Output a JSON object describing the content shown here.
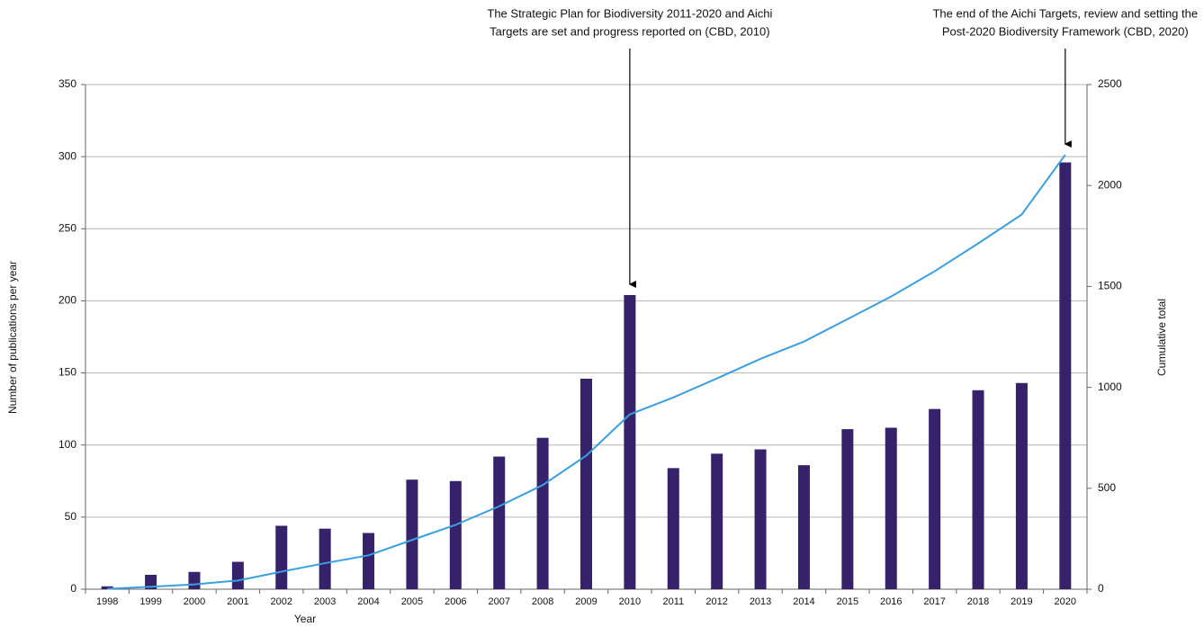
{
  "chart_data": {
    "type": "bar_line",
    "categories": [
      "1998",
      "1999",
      "2000",
      "2001",
      "2002",
      "2003",
      "2004",
      "2005",
      "2006",
      "2007",
      "2008",
      "2009",
      "2010",
      "2011",
      "2012",
      "2013",
      "2014",
      "2015",
      "2016",
      "2017",
      "2018",
      "2019",
      "2020"
    ],
    "series": [
      {
        "type": "bar",
        "color": "#35226a",
        "values": [
          2,
          10,
          12,
          19,
          44,
          42,
          39,
          76,
          75,
          92,
          105,
          146,
          204,
          84,
          94,
          97,
          86,
          111,
          112,
          125,
          138,
          143,
          296
        ]
      },
      {
        "type": "line",
        "axis": "y2",
        "color": "#3a9fe0",
        "values": [
          2,
          12,
          24,
          43,
          87,
          129,
          168,
          244,
          319,
          411,
          516,
          662,
          866,
          950,
          1044,
          1141,
          1227,
          1338,
          1450,
          1575,
          1713,
          1856,
          2152
        ]
      }
    ],
    "ylim": [
      0,
      350
    ],
    "yticks": [
      0,
      50,
      100,
      150,
      200,
      250,
      300,
      350
    ],
    "y2lim": [
      0,
      2500
    ],
    "y2ticks": [
      0,
      500,
      1000,
      1500,
      2000,
      2500
    ],
    "grid": true,
    "x_label": "Year",
    "y_label": "Number of publications per year",
    "y2_label": "Cumulative total",
    "annotations": [
      {
        "category": "2010",
        "lines": [
          "The Strategic Plan for Biodiversity 2011-2020 and Aichi",
          "Targets are set and progress reported on (CBD, 2010)"
        ]
      },
      {
        "category": "2020",
        "lines": [
          "The end of the Aichi Targets, review and setting the",
          "Post-2020 Biodiversity Framework (CBD, 2020)"
        ]
      }
    ]
  }
}
